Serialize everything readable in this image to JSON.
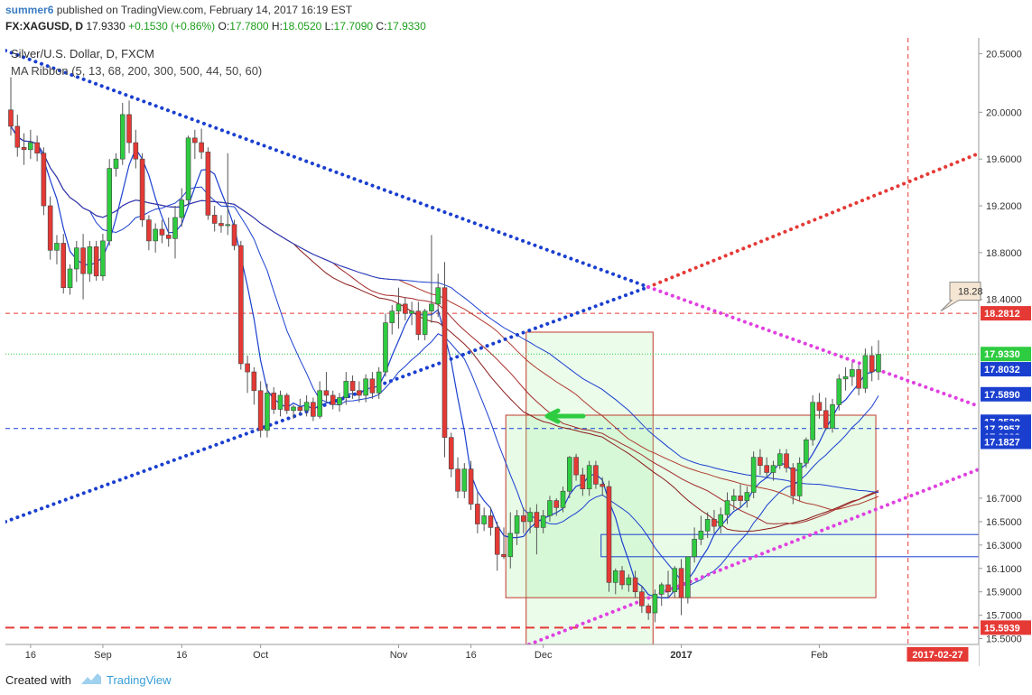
{
  "header": {
    "author": "summer6",
    "published_text": " published on TradingView.com, February 14, 2017 16:19 EST",
    "symbol": "FX:XAGUSD, D",
    "price": "17.9330",
    "change": "+0.1530 (+0.86%)",
    "o_label": "O:",
    "o_value": "17.7800",
    "h_label": "H:",
    "h_value": "18.0520",
    "l_label": "L:",
    "l_value": "17.7090",
    "c_label": "C:",
    "c_value": "17.9330"
  },
  "legend": {
    "line1": "Silver/U.S. Dollar, D, FXCM",
    "line2": "MA Ribbon (5, 13, 68, 200, 300, 500, 44, 50, 60)"
  },
  "footer": {
    "created": "Created with",
    "brand": "TradingView"
  },
  "chart_data": {
    "type": "candlestick",
    "title": "Silver/U.S. Dollar, D, FXCM",
    "ylim": [
      15.45,
      20.62
    ],
    "y_ticks": [
      {
        "label": "20.5000",
        "value": 20.5
      },
      {
        "label": "20.0000",
        "value": 20.0
      },
      {
        "label": "19.6000",
        "value": 19.6
      },
      {
        "label": "19.2000",
        "value": 19.2
      },
      {
        "label": "18.8000",
        "value": 18.8
      },
      {
        "label": "18.4000",
        "value": 18.4
      },
      {
        "label": "16.7000",
        "value": 16.7
      },
      {
        "label": "16.5000",
        "value": 16.5
      },
      {
        "label": "16.3000",
        "value": 16.3
      },
      {
        "label": "16.1000",
        "value": 16.1
      },
      {
        "label": "15.9000",
        "value": 15.9
      },
      {
        "label": "15.7000",
        "value": 15.7
      },
      {
        "label": "15.5000",
        "value": 15.5
      }
    ],
    "price_tags": [
      {
        "label": "18.2812",
        "value": 18.2812,
        "color": "#e53935"
      },
      {
        "label": "17.9330",
        "value": 17.933,
        "color": "#2ecc40"
      },
      {
        "label": "17.8032",
        "value": 17.8032,
        "color": "#1a3fcf"
      },
      {
        "label": "17.5890",
        "value": 17.589,
        "color": "#1a3fcf"
      },
      {
        "label": "17.3539",
        "value": 17.3539,
        "color": "#1a3fcf"
      },
      {
        "label": "17.2957",
        "value": 17.2957,
        "color": "#1a3fcf"
      },
      {
        "label": "17.2238",
        "value": 17.2238,
        "color": "#1a3fcf"
      },
      {
        "label": "17.1829",
        "value": 17.1829,
        "color": "#1a3fcf"
      },
      {
        "label": "17.1827",
        "value": 17.1827,
        "color": "#1a3fcf"
      },
      {
        "label": "15.5939",
        "value": 15.5939,
        "color": "#e53935"
      }
    ],
    "x_ticks": [
      {
        "label": "16",
        "index": 3
      },
      {
        "label": "Sep",
        "index": 14
      },
      {
        "label": "16",
        "index": 26
      },
      {
        "label": "Oct",
        "index": 38
      },
      {
        "label": "Nov",
        "index": 59
      },
      {
        "label": "16",
        "index": 70
      },
      {
        "label": "Dec",
        "index": 81
      },
      {
        "label": "2017",
        "index": 102
      },
      {
        "label": "Feb",
        "index": 123
      }
    ],
    "x_tag": {
      "label": "2017-02-27",
      "index": 141
    },
    "callout": "18.28",
    "candles": [
      {
        "o": 20.02,
        "h": 20.3,
        "l": 19.8,
        "c": 19.88
      },
      {
        "o": 19.88,
        "h": 19.98,
        "l": 19.62,
        "c": 19.7
      },
      {
        "o": 19.7,
        "h": 19.82,
        "l": 19.55,
        "c": 19.68
      },
      {
        "o": 19.68,
        "h": 19.85,
        "l": 19.6,
        "c": 19.74
      },
      {
        "o": 19.74,
        "h": 19.8,
        "l": 19.58,
        "c": 19.65
      },
      {
        "o": 19.65,
        "h": 19.7,
        "l": 19.12,
        "c": 19.2
      },
      {
        "o": 19.2,
        "h": 19.28,
        "l": 18.74,
        "c": 18.82
      },
      {
        "o": 18.82,
        "h": 18.95,
        "l": 18.7,
        "c": 18.88
      },
      {
        "o": 18.88,
        "h": 18.96,
        "l": 18.45,
        "c": 18.5
      },
      {
        "o": 18.5,
        "h": 18.7,
        "l": 18.44,
        "c": 18.66
      },
      {
        "o": 18.66,
        "h": 18.9,
        "l": 18.55,
        "c": 18.84
      },
      {
        "o": 18.84,
        "h": 18.96,
        "l": 18.4,
        "c": 18.62
      },
      {
        "o": 18.62,
        "h": 18.9,
        "l": 18.55,
        "c": 18.85
      },
      {
        "o": 18.85,
        "h": 18.9,
        "l": 18.56,
        "c": 18.6
      },
      {
        "o": 18.6,
        "h": 18.96,
        "l": 18.56,
        "c": 18.9
      },
      {
        "o": 18.9,
        "h": 19.6,
        "l": 18.86,
        "c": 19.52
      },
      {
        "o": 19.52,
        "h": 19.65,
        "l": 19.45,
        "c": 19.6
      },
      {
        "o": 19.6,
        "h": 20.08,
        "l": 19.55,
        "c": 19.98
      },
      {
        "o": 19.98,
        "h": 20.1,
        "l": 19.65,
        "c": 19.74
      },
      {
        "o": 19.74,
        "h": 19.85,
        "l": 19.52,
        "c": 19.6
      },
      {
        "o": 19.6,
        "h": 19.65,
        "l": 19.02,
        "c": 19.08
      },
      {
        "o": 19.08,
        "h": 19.12,
        "l": 18.82,
        "c": 18.9
      },
      {
        "o": 18.9,
        "h": 19.05,
        "l": 18.8,
        "c": 19.0
      },
      {
        "o": 19.0,
        "h": 19.08,
        "l": 18.88,
        "c": 18.95
      },
      {
        "o": 18.95,
        "h": 19.1,
        "l": 18.85,
        "c": 18.92
      },
      {
        "o": 18.92,
        "h": 19.2,
        "l": 18.75,
        "c": 19.1
      },
      {
        "o": 19.1,
        "h": 19.35,
        "l": 19.02,
        "c": 19.25
      },
      {
        "o": 19.25,
        "h": 19.8,
        "l": 19.2,
        "c": 19.78
      },
      {
        "o": 19.78,
        "h": 19.85,
        "l": 19.6,
        "c": 19.74
      },
      {
        "o": 19.74,
        "h": 19.86,
        "l": 19.6,
        "c": 19.66
      },
      {
        "o": 19.66,
        "h": 19.7,
        "l": 19.08,
        "c": 19.12
      },
      {
        "o": 19.12,
        "h": 19.2,
        "l": 18.98,
        "c": 19.05
      },
      {
        "o": 19.05,
        "h": 19.12,
        "l": 18.97,
        "c": 19.03
      },
      {
        "o": 19.03,
        "h": 19.65,
        "l": 18.95,
        "c": 19.04
      },
      {
        "o": 19.04,
        "h": 19.08,
        "l": 18.82,
        "c": 18.86
      },
      {
        "o": 18.86,
        "h": 18.9,
        "l": 17.8,
        "c": 17.85
      },
      {
        "o": 17.85,
        "h": 17.92,
        "l": 17.6,
        "c": 17.78
      },
      {
        "o": 17.78,
        "h": 17.82,
        "l": 17.5,
        "c": 17.62
      },
      {
        "o": 17.62,
        "h": 17.7,
        "l": 17.22,
        "c": 17.28
      },
      {
        "o": 17.28,
        "h": 17.68,
        "l": 17.22,
        "c": 17.6
      },
      {
        "o": 17.6,
        "h": 17.65,
        "l": 17.42,
        "c": 17.46
      },
      {
        "o": 17.46,
        "h": 17.62,
        "l": 17.4,
        "c": 17.58
      },
      {
        "o": 17.58,
        "h": 17.6,
        "l": 17.42,
        "c": 17.45
      },
      {
        "o": 17.45,
        "h": 17.5,
        "l": 17.38,
        "c": 17.48
      },
      {
        "o": 17.48,
        "h": 17.55,
        "l": 17.42,
        "c": 17.45
      },
      {
        "o": 17.45,
        "h": 17.58,
        "l": 17.4,
        "c": 17.52
      },
      {
        "o": 17.52,
        "h": 17.56,
        "l": 17.36,
        "c": 17.4
      },
      {
        "o": 17.4,
        "h": 17.7,
        "l": 17.38,
        "c": 17.62
      },
      {
        "o": 17.62,
        "h": 17.78,
        "l": 17.52,
        "c": 17.58
      },
      {
        "o": 17.58,
        "h": 17.62,
        "l": 17.46,
        "c": 17.5
      },
      {
        "o": 17.5,
        "h": 17.6,
        "l": 17.44,
        "c": 17.56
      },
      {
        "o": 17.56,
        "h": 17.78,
        "l": 17.5,
        "c": 17.7
      },
      {
        "o": 17.7,
        "h": 17.75,
        "l": 17.55,
        "c": 17.62
      },
      {
        "o": 17.62,
        "h": 17.7,
        "l": 17.52,
        "c": 17.58
      },
      {
        "o": 17.58,
        "h": 17.76,
        "l": 17.52,
        "c": 17.72
      },
      {
        "o": 17.72,
        "h": 17.78,
        "l": 17.55,
        "c": 17.6
      },
      {
        "o": 17.6,
        "h": 17.82,
        "l": 17.55,
        "c": 17.78
      },
      {
        "o": 17.78,
        "h": 18.28,
        "l": 17.74,
        "c": 18.2
      },
      {
        "o": 18.2,
        "h": 18.35,
        "l": 18.1,
        "c": 18.3
      },
      {
        "o": 18.3,
        "h": 18.5,
        "l": 18.15,
        "c": 18.36
      },
      {
        "o": 18.36,
        "h": 18.42,
        "l": 18.22,
        "c": 18.28
      },
      {
        "o": 18.28,
        "h": 18.38,
        "l": 18.18,
        "c": 18.3
      },
      {
        "o": 18.3,
        "h": 18.38,
        "l": 18.05,
        "c": 18.1
      },
      {
        "o": 18.1,
        "h": 18.32,
        "l": 18.05,
        "c": 18.3
      },
      {
        "o": 18.3,
        "h": 18.95,
        "l": 18.2,
        "c": 18.36
      },
      {
        "o": 18.36,
        "h": 18.62,
        "l": 18.25,
        "c": 18.5
      },
      {
        "o": 18.5,
        "h": 18.72,
        "l": 17.05,
        "c": 17.22
      },
      {
        "o": 17.22,
        "h": 17.26,
        "l": 16.88,
        "c": 16.95
      },
      {
        "o": 16.95,
        "h": 17.05,
        "l": 16.7,
        "c": 16.76
      },
      {
        "o": 16.76,
        "h": 17.0,
        "l": 16.7,
        "c": 16.95
      },
      {
        "o": 16.95,
        "h": 17.02,
        "l": 16.6,
        "c": 16.65
      },
      {
        "o": 16.65,
        "h": 16.75,
        "l": 16.4,
        "c": 16.48
      },
      {
        "o": 16.48,
        "h": 16.62,
        "l": 16.42,
        "c": 16.55
      },
      {
        "o": 16.55,
        "h": 16.62,
        "l": 16.38,
        "c": 16.45
      },
      {
        "o": 16.45,
        "h": 16.5,
        "l": 16.08,
        "c": 16.22
      },
      {
        "o": 16.22,
        "h": 16.45,
        "l": 16.18,
        "c": 16.2
      },
      {
        "o": 16.2,
        "h": 16.58,
        "l": 16.1,
        "c": 16.4
      },
      {
        "o": 16.4,
        "h": 16.6,
        "l": 16.3,
        "c": 16.55
      },
      {
        "o": 16.55,
        "h": 16.62,
        "l": 16.4,
        "c": 16.5
      },
      {
        "o": 16.5,
        "h": 16.62,
        "l": 16.4,
        "c": 16.58
      },
      {
        "o": 16.58,
        "h": 16.65,
        "l": 16.22,
        "c": 16.45
      },
      {
        "o": 16.45,
        "h": 16.6,
        "l": 16.4,
        "c": 16.55
      },
      {
        "o": 16.55,
        "h": 16.72,
        "l": 16.5,
        "c": 16.68
      },
      {
        "o": 16.68,
        "h": 16.7,
        "l": 16.55,
        "c": 16.62
      },
      {
        "o": 16.62,
        "h": 16.8,
        "l": 16.58,
        "c": 16.76
      },
      {
        "o": 16.76,
        "h": 17.06,
        "l": 16.7,
        "c": 17.05
      },
      {
        "o": 17.05,
        "h": 17.08,
        "l": 16.85,
        "c": 16.9
      },
      {
        "o": 16.9,
        "h": 16.96,
        "l": 16.72,
        "c": 16.78
      },
      {
        "o": 16.78,
        "h": 17.02,
        "l": 16.72,
        "c": 16.98
      },
      {
        "o": 16.98,
        "h": 17.02,
        "l": 16.78,
        "c": 16.82
      },
      {
        "o": 16.82,
        "h": 16.88,
        "l": 16.72,
        "c": 16.8
      },
      {
        "o": 16.8,
        "h": 16.85,
        "l": 15.9,
        "c": 15.98
      },
      {
        "o": 15.98,
        "h": 16.1,
        "l": 15.88,
        "c": 16.08
      },
      {
        "o": 16.08,
        "h": 16.12,
        "l": 15.92,
        "c": 15.96
      },
      {
        "o": 15.96,
        "h": 16.05,
        "l": 15.9,
        "c": 16.02
      },
      {
        "o": 16.02,
        "h": 16.08,
        "l": 15.85,
        "c": 15.9
      },
      {
        "o": 15.9,
        "h": 15.95,
        "l": 15.72,
        "c": 15.78
      },
      {
        "o": 15.78,
        "h": 15.8,
        "l": 15.66,
        "c": 15.72
      },
      {
        "o": 15.72,
        "h": 15.92,
        "l": 15.64,
        "c": 15.88
      },
      {
        "o": 15.88,
        "h": 15.98,
        "l": 15.78,
        "c": 15.96
      },
      {
        "o": 15.96,
        "h": 16.08,
        "l": 15.85,
        "c": 15.9
      },
      {
        "o": 15.9,
        "h": 16.12,
        "l": 15.85,
        "c": 16.1
      },
      {
        "o": 16.1,
        "h": 16.18,
        "l": 15.7,
        "c": 15.85
      },
      {
        "o": 15.85,
        "h": 16.2,
        "l": 15.8,
        "c": 16.2
      },
      {
        "o": 16.2,
        "h": 16.45,
        "l": 16.15,
        "c": 16.35
      },
      {
        "o": 16.35,
        "h": 16.55,
        "l": 16.3,
        "c": 16.42
      },
      {
        "o": 16.42,
        "h": 16.58,
        "l": 16.36,
        "c": 16.52
      },
      {
        "o": 16.52,
        "h": 16.6,
        "l": 16.4,
        "c": 16.46
      },
      {
        "o": 16.46,
        "h": 16.62,
        "l": 16.4,
        "c": 16.56
      },
      {
        "o": 16.56,
        "h": 16.75,
        "l": 16.48,
        "c": 16.68
      },
      {
        "o": 16.68,
        "h": 16.78,
        "l": 16.6,
        "c": 16.72
      },
      {
        "o": 16.72,
        "h": 16.82,
        "l": 16.62,
        "c": 16.68
      },
      {
        "o": 16.68,
        "h": 16.8,
        "l": 16.62,
        "c": 16.75
      },
      {
        "o": 16.75,
        "h": 17.1,
        "l": 16.7,
        "c": 17.05
      },
      {
        "o": 17.05,
        "h": 17.12,
        "l": 16.9,
        "c": 16.98
      },
      {
        "o": 16.98,
        "h": 17.05,
        "l": 16.88,
        "c": 16.92
      },
      {
        "o": 16.92,
        "h": 17.02,
        "l": 16.85,
        "c": 16.98
      },
      {
        "o": 16.98,
        "h": 17.12,
        "l": 16.95,
        "c": 17.08
      },
      {
        "o": 17.08,
        "h": 17.12,
        "l": 16.92,
        "c": 16.96
      },
      {
        "o": 16.96,
        "h": 17.0,
        "l": 16.65,
        "c": 16.72
      },
      {
        "o": 16.72,
        "h": 17.05,
        "l": 16.68,
        "c": 17.0
      },
      {
        "o": 17.0,
        "h": 17.22,
        "l": 16.96,
        "c": 17.2
      },
      {
        "o": 17.2,
        "h": 17.58,
        "l": 17.15,
        "c": 17.52
      },
      {
        "o": 17.52,
        "h": 17.6,
        "l": 17.38,
        "c": 17.45
      },
      {
        "o": 17.45,
        "h": 17.56,
        "l": 17.28,
        "c": 17.3
      },
      {
        "o": 17.3,
        "h": 17.55,
        "l": 17.26,
        "c": 17.5
      },
      {
        "o": 17.5,
        "h": 17.76,
        "l": 17.45,
        "c": 17.72
      },
      {
        "o": 17.72,
        "h": 17.82,
        "l": 17.62,
        "c": 17.74
      },
      {
        "o": 17.74,
        "h": 17.86,
        "l": 17.66,
        "c": 17.8
      },
      {
        "o": 17.8,
        "h": 17.84,
        "l": 17.58,
        "c": 17.64
      },
      {
        "o": 17.64,
        "h": 17.98,
        "l": 17.6,
        "c": 17.92
      },
      {
        "o": 17.92,
        "h": 18.0,
        "l": 17.7,
        "c": 17.78
      },
      {
        "o": 17.78,
        "h": 18.05,
        "l": 17.71,
        "c": 17.93
      }
    ]
  }
}
